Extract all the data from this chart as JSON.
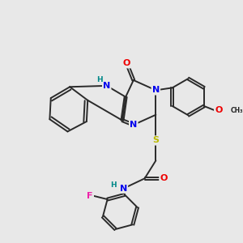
{
  "bg_color": "#e8e8e8",
  "bond_color": "#2a2a2a",
  "bond_lw": 1.4,
  "dbo": 0.055,
  "colors": {
    "N": "#0000ee",
    "O": "#ee0000",
    "S": "#bbbb00",
    "F": "#ee22aa",
    "H": "#008888",
    "C": "#222222"
  },
  "fs": 8.0
}
